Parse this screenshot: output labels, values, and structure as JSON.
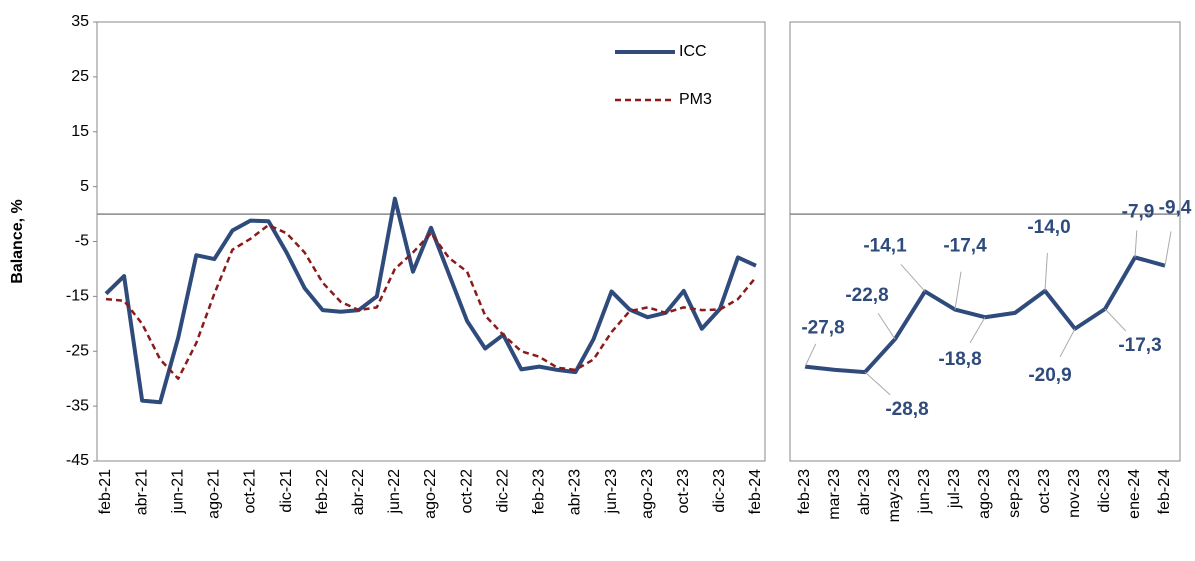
{
  "chart_data": [
    {
      "type": "line",
      "ylabel": "Balance, %",
      "legend": "upper right",
      "ylim": [
        -45,
        35
      ],
      "yticks": [
        -45,
        -35,
        -25,
        -15,
        -5,
        5,
        15,
        25,
        35
      ],
      "categories": [
        "feb-21",
        null,
        "abr-21",
        null,
        "jun-21",
        null,
        "ago-21",
        null,
        "oct-21",
        null,
        "dic-21",
        null,
        "feb-22",
        null,
        "abr-22",
        null,
        "jun-22",
        null,
        "ago-22",
        null,
        "oct-22",
        null,
        "dic-22",
        null,
        "feb-23",
        null,
        "abr-23",
        null,
        "jun-23",
        null,
        "ago-23",
        null,
        "oct-23",
        null,
        "dic-23",
        null,
        "feb-24"
      ],
      "series": [
        {
          "name": "ICC",
          "color": "#2f4b7c",
          "style": "solid",
          "values": [
            -14.5,
            -11.3,
            -34,
            -34.3,
            -22.5,
            -7.5,
            -8.2,
            -3,
            -1.2,
            -1.3,
            -7,
            -13.5,
            -17.5,
            -17.8,
            -17.5,
            -15,
            2.8,
            -10.5,
            -2.5,
            -11,
            -19.5,
            -24.5,
            -22,
            -28.3,
            -27.8,
            -28.4,
            -28.8,
            -22.8,
            -14.1,
            -17.4,
            -18.8,
            -18,
            -14,
            -20.9,
            -17.3,
            -7.9,
            -9.4
          ]
        },
        {
          "name": "PM3",
          "color": "#8b1a1a",
          "style": "dashed",
          "values": [
            -15.5,
            -15.8,
            -20,
            -26.5,
            -30,
            -23.5,
            -14.5,
            -6.5,
            -4.5,
            -2,
            -3.5,
            -7,
            -12.5,
            -16,
            -17.5,
            -17,
            -10,
            -7,
            -3.5,
            -8,
            -10.5,
            -18.5,
            -22,
            -25,
            -26,
            -28,
            -28.4,
            -26.5,
            -21.5,
            -17.7,
            -17,
            -18,
            -17,
            -17.5,
            -17.4,
            -15.5,
            -11.5
          ]
        }
      ]
    },
    {
      "type": "line",
      "ylim": [
        -45,
        35
      ],
      "categories": [
        "feb-23",
        "mar-23",
        "abr-23",
        "may-23",
        "jun-23",
        "jul-23",
        "ago-23",
        "sep-23",
        "oct-23",
        "nov-23",
        "dic-23",
        "ene-24",
        "feb-24"
      ],
      "series": [
        {
          "name": "ICC",
          "color": "#2f4b7c",
          "style": "solid",
          "values": [
            -27.8,
            -28.4,
            -28.8,
            -22.8,
            -14.1,
            -17.4,
            -18.8,
            -18,
            -14,
            -20.9,
            -17.3,
            -7.9,
            -9.4
          ],
          "value_labels": [
            "-27,8",
            null,
            "-28,8",
            "-22,8",
            "-14,1",
            "-17,4",
            "-18,8",
            null,
            "-14,0",
            "-20,9",
            "-17,3",
            "-7,9",
            "-9,4"
          ]
        }
      ]
    }
  ]
}
